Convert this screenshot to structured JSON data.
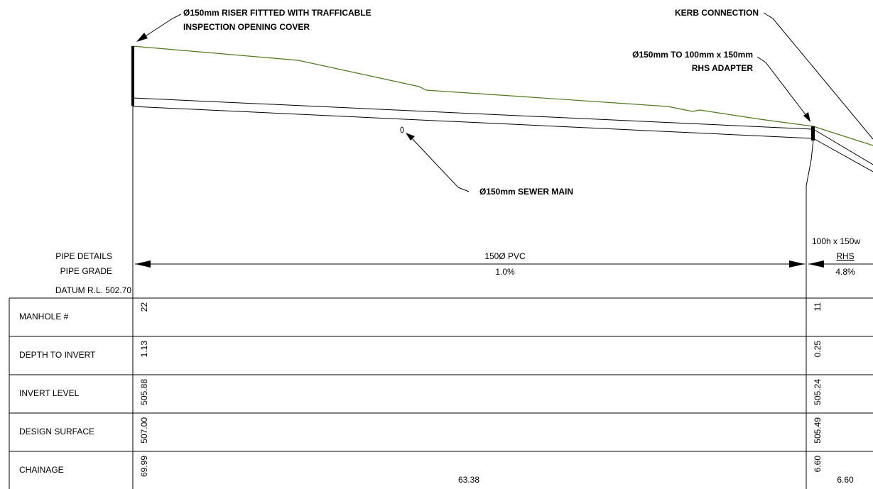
{
  "annotations": {
    "riser": [
      "Ø150mm RISER FITTTED WITH TRAFFICABLE",
      "INSPECTION OPENING COVER"
    ],
    "kerb": "KERB CONNECTION",
    "adapter": [
      "Ø150mm TO 100mm x 150mm",
      "RHS ADAPTER"
    ],
    "sewer_main": "Ø150mm SEWER MAIN"
  },
  "pipe_section": {
    "row_labels": [
      "PIPE DETAILS",
      "PIPE GRADE"
    ],
    "segments": [
      {
        "details": [
          "150Ø PVC"
        ],
        "grade": "1.0%"
      },
      {
        "details": [
          "100h x 150w",
          "RHS"
        ],
        "grade": "4.8%"
      }
    ]
  },
  "datum": "DATUM R.L. 502.70",
  "table": {
    "rows": [
      {
        "label": "MANHOLE #",
        "values": [
          "22",
          "11"
        ]
      },
      {
        "label": "DEPTH TO INVERT",
        "values": [
          "1.13",
          "0.25"
        ]
      },
      {
        "label": "INVERT LEVEL",
        "values": [
          "505.88",
          "505.24"
        ]
      },
      {
        "label": "DESIGN SURFACE",
        "values": [
          "507.00",
          "505.49"
        ]
      },
      {
        "label": "CHAINAGE",
        "values": [
          "69.99",
          "6.60"
        ]
      }
    ],
    "chainage_lengths": [
      "63.38",
      "6.60"
    ]
  }
}
